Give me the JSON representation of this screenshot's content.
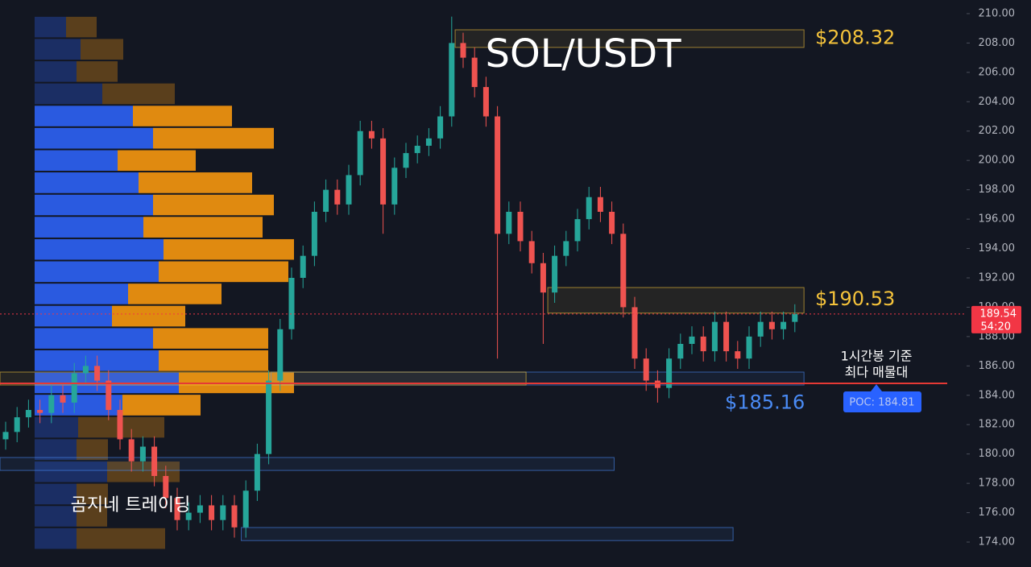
{
  "chart_data": {
    "type": "candlestick",
    "title": "SOL/USDT",
    "watermark": "곰지네 트레이딩",
    "ylim": [
      172.3,
      210.93
    ],
    "yticks": [
      {
        "value": 174,
        "label": "174.00"
      },
      {
        "value": 176,
        "label": "176.00"
      },
      {
        "value": 178,
        "label": "178.00"
      },
      {
        "value": 180,
        "label": "180.00"
      },
      {
        "value": 182,
        "label": "182.00"
      },
      {
        "value": 184,
        "label": "184.00"
      },
      {
        "value": 186,
        "label": "186.00"
      },
      {
        "value": 188,
        "label": "188.00"
      },
      {
        "value": 190,
        "label": "190.00"
      },
      {
        "value": 192,
        "label": "192.00"
      },
      {
        "value": 194,
        "label": "194.00"
      },
      {
        "value": 196,
        "label": "196.00"
      },
      {
        "value": 198,
        "label": "198.00"
      },
      {
        "value": 200,
        "label": "200.00"
      },
      {
        "value": 202,
        "label": "202.00"
      },
      {
        "value": 204,
        "label": "204.00"
      },
      {
        "value": 206,
        "label": "206.00"
      },
      {
        "value": 208,
        "label": "208.00"
      },
      {
        "value": 210,
        "label": "210.00"
      }
    ],
    "grid": false,
    "up_color": "#26a69a",
    "down_color": "#ef5350",
    "open": [
      181,
      181.5,
      182.5,
      183,
      182.8,
      184,
      183.5,
      185.5,
      186,
      185,
      183,
      181,
      179.5,
      180.5,
      178.5,
      177,
      175.5,
      176,
      176.5,
      175.5,
      176.5,
      175,
      177.5,
      180,
      185,
      188.5,
      192,
      193.5,
      196.5,
      198,
      197,
      199,
      202,
      201.5,
      197,
      199.5,
      200.5,
      201,
      201.5,
      203,
      208,
      207,
      205,
      203,
      195,
      196.5,
      194.5,
      193,
      191,
      193.5,
      194.5,
      196,
      197.5,
      196.5,
      195,
      190,
      186.5,
      185,
      184.5,
      186.5,
      187.5,
      188,
      187,
      189,
      187,
      186.5,
      188,
      189,
      188.5,
      189
    ],
    "high": [
      182.2,
      183.2,
      183.7,
      183.7,
      184.7,
      184.7,
      186.2,
      186.7,
      186.7,
      185.7,
      183.7,
      181.7,
      181.2,
      181.2,
      179.2,
      177.7,
      176.7,
      177.2,
      177.2,
      177.2,
      177.2,
      178.2,
      180.7,
      185.7,
      189.2,
      192.7,
      194.2,
      197.2,
      198.7,
      198.7,
      199.7,
      202.7,
      202.7,
      202.2,
      200.2,
      201.2,
      201.7,
      202.2,
      203.7,
      209.8,
      208.7,
      207.7,
      205.7,
      203.7,
      197.2,
      197.2,
      195.2,
      193.7,
      194.2,
      195.2,
      196.7,
      198.2,
      198.2,
      197.2,
      195.7,
      190.7,
      187.2,
      185.7,
      187.2,
      188.2,
      188.7,
      188.7,
      189.7,
      189.7,
      187.7,
      188.7,
      189.7,
      189.7,
      189.7,
      190.2
    ],
    "low": [
      180.3,
      180.8,
      181.8,
      182.1,
      182.1,
      182.8,
      182.8,
      184.8,
      184.3,
      182.3,
      180.3,
      178.8,
      178.8,
      177.8,
      176.3,
      174.8,
      174.8,
      175.3,
      174.8,
      174.8,
      174.3,
      174.3,
      176.8,
      179.3,
      184.3,
      187.8,
      191.3,
      192.8,
      195.8,
      196.3,
      196.3,
      198.3,
      200.8,
      195,
      196.3,
      198.8,
      199.8,
      200.3,
      200.8,
      202.3,
      206.3,
      204.3,
      202.3,
      186.5,
      194.3,
      193.8,
      192.3,
      187.5,
      190.3,
      192.8,
      193.8,
      195.3,
      195.8,
      194.3,
      189.3,
      185.8,
      184.3,
      183.5,
      183.8,
      185.8,
      186.8,
      186.3,
      186.3,
      186.3,
      185.8,
      185.8,
      187.3,
      187.8,
      187.8,
      188.3
    ],
    "close": [
      181.5,
      182.5,
      183,
      182.8,
      184,
      183.5,
      185.5,
      186,
      185,
      183,
      181,
      179.5,
      180.5,
      178.5,
      177,
      175.5,
      176,
      176.5,
      175.5,
      176.5,
      175,
      177.5,
      180,
      185,
      188.5,
      192,
      193.5,
      196.5,
      198,
      197,
      199,
      202,
      201.5,
      197,
      199.5,
      200.5,
      201,
      201.5,
      203,
      208,
      207,
      205,
      203,
      195,
      196.5,
      194.5,
      193,
      191,
      193.5,
      194.5,
      196,
      197.5,
      196.5,
      195,
      190,
      186.5,
      185,
      184.5,
      186.5,
      187.5,
      188,
      187,
      189,
      187,
      186.5,
      188,
      189,
      188.5,
      189,
      189.54
    ],
    "volume_profile": {
      "bins": [
        209.84,
        208.33,
        206.81,
        205.3,
        203.78,
        202.27,
        200.75,
        199.24,
        197.72,
        196.21,
        194.69,
        193.18,
        191.66,
        190.15,
        188.63,
        187.12,
        185.6,
        184.09,
        182.57,
        181.06,
        179.54,
        178.03,
        176.51,
        175.0,
        173.48
      ],
      "buy": [
        39,
        57,
        52,
        84,
        122,
        147,
        103,
        129,
        147,
        135,
        160,
        154,
        116,
        96,
        147,
        154,
        179,
        109,
        54,
        52,
        90,
        52,
        52,
        52
      ],
      "sell": [
        38,
        53,
        51,
        90,
        123,
        150,
        97,
        141,
        150,
        148,
        162,
        161,
        116,
        91,
        143,
        136,
        143,
        97,
        107,
        39,
        90,
        39,
        38,
        110
      ],
      "buy_color": "#2a5ae0",
      "sell_color": "#e08a10",
      "value_area": [
        182.57,
        203.78
      ]
    },
    "zones": [
      {
        "from": 39.3,
        "to": 69.8,
        "top": 208.9,
        "bottom": 207.7,
        "color": "#f5c33b",
        "value": 208.32,
        "label": "$208.32"
      },
      {
        "from": 47.4,
        "to": 69.8,
        "top": 191.34,
        "bottom": 189.6,
        "color": "#f5c33b",
        "value": 190.53,
        "label": "$190.53"
      },
      {
        "from": 23.2,
        "to": 69.8,
        "top": 185.58,
        "bottom": 184.7,
        "color": "#4a8bf5",
        "value": 185.16,
        "label": "$185.16"
      },
      {
        "from": -0.5,
        "to": 45.5,
        "top": 185.58,
        "bottom": 184.7,
        "color": "#f5c33b"
      },
      {
        "from": -0.5,
        "to": 53.2,
        "top": 179.76,
        "bottom": 178.88,
        "color": "#4a8bf5"
      },
      {
        "from": 20.6,
        "to": 63.6,
        "top": 174.99,
        "bottom": 174.1,
        "color": "#4a8bf5"
      }
    ],
    "poc": {
      "value": 184.81,
      "label": "POC: 184.81",
      "note": [
        "1시간봉 기준",
        "최다 매물대"
      ],
      "color": "#e53935"
    },
    "last_price": {
      "value": 189.54,
      "countdown": "54:20",
      "color": "#f23645"
    }
  }
}
